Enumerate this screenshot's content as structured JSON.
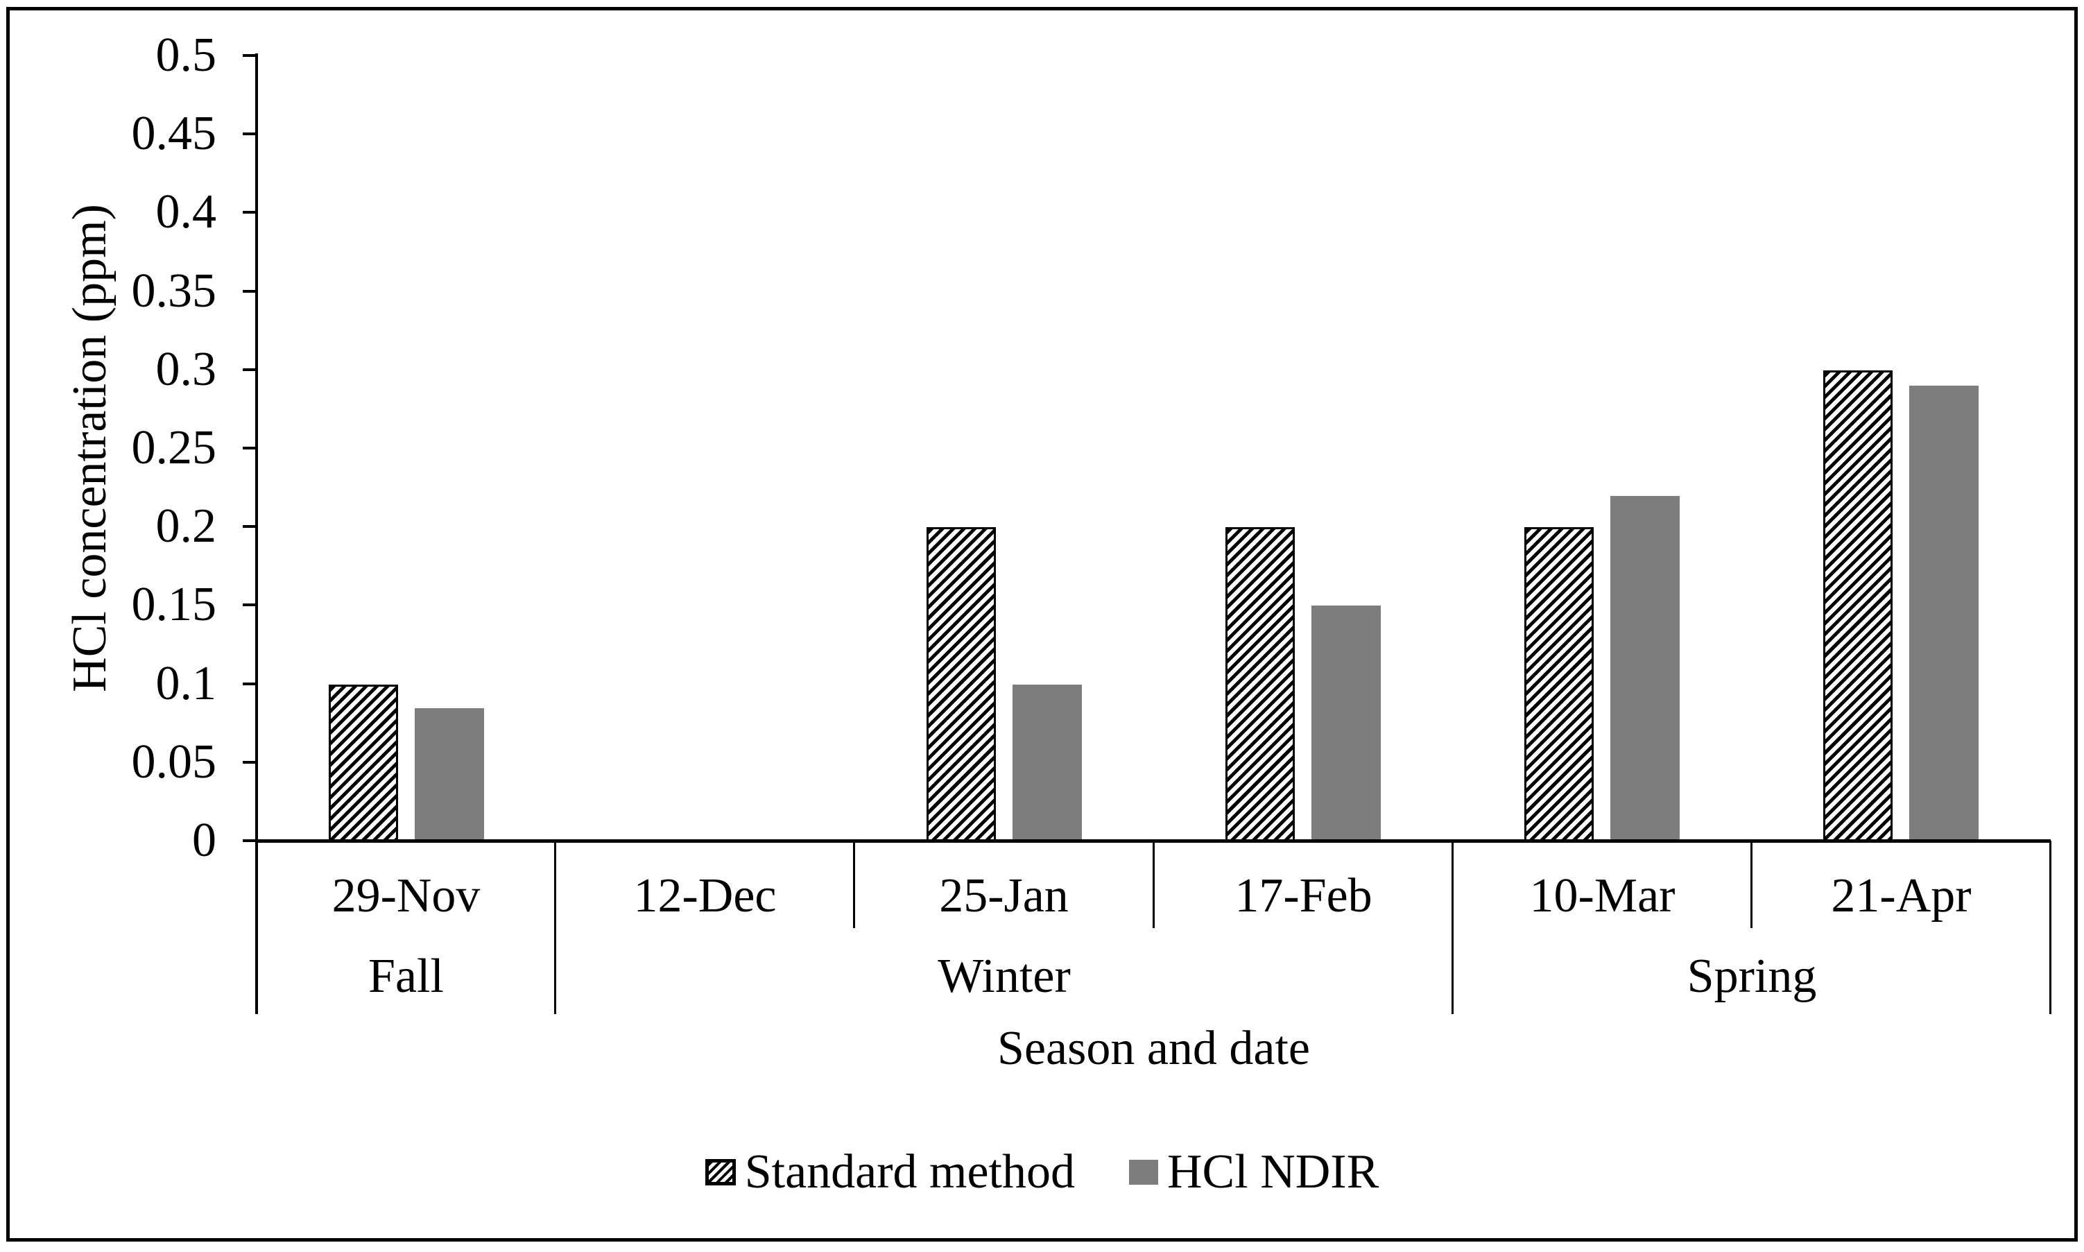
{
  "colors": {
    "bar_gray": "#7d7d7d",
    "axis": "#000000",
    "background": "#ffffff"
  },
  "legend": {
    "items": [
      {
        "label": "Standard method",
        "swatch": "hatched"
      },
      {
        "label": "HCl NDIR",
        "swatch": "solid-gray"
      }
    ]
  },
  "chart_data": {
    "type": "bar",
    "title": "",
    "xlabel": "Season and date",
    "ylabel": "HCl concentration (ppm)",
    "categories": [
      "29-Nov",
      "12-Dec",
      "25-Jan",
      "17-Feb",
      "10-Mar",
      "21-Apr"
    ],
    "season_groups": [
      {
        "label": "Fall",
        "start": 0,
        "count": 1
      },
      {
        "label": "Winter",
        "start": 1,
        "count": 3
      },
      {
        "label": "Spring",
        "start": 4,
        "count": 2
      }
    ],
    "series": [
      {
        "name": "Standard method",
        "style": "hatched",
        "values": [
          0.1,
          0,
          0.2,
          0.2,
          0.2,
          0.3
        ]
      },
      {
        "name": "HCl NDIR",
        "style": "solid",
        "color": "#7d7d7d",
        "values": [
          0.085,
          0,
          0.1,
          0.15,
          0.22,
          0.29
        ]
      }
    ],
    "ylim": [
      0,
      0.5
    ],
    "ytick_step": 0.05,
    "ytick_labels": [
      "0",
      "0.05",
      "0.1",
      "0.15",
      "0.2",
      "0.25",
      "0.3",
      "0.35",
      "0.4",
      "0.45",
      "0.5"
    ],
    "grid": false,
    "legend_position": "bottom"
  }
}
